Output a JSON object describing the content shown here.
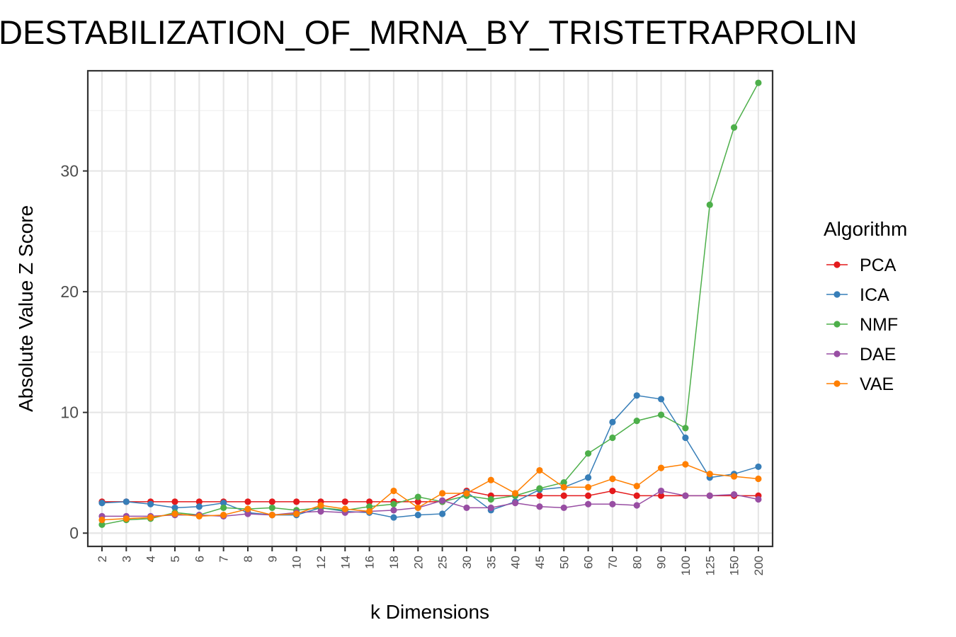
{
  "chart_data": {
    "type": "line",
    "title": "DESTABILIZATION_OF_MRNA_BY_TRISTETRAPROLIN",
    "xlabel": "k Dimensions",
    "ylabel": "Absolute Value Z Score",
    "legend_title": "Algorithm",
    "legend_position": "right",
    "grid": true,
    "ylim": [
      -1.1,
      38.3
    ],
    "yticks": [
      "0",
      "10",
      "20",
      "30"
    ],
    "categories": [
      "2",
      "3",
      "4",
      "5",
      "6",
      "7",
      "8",
      "9",
      "10",
      "12",
      "14",
      "16",
      "18",
      "20",
      "25",
      "30",
      "35",
      "40",
      "45",
      "50",
      "60",
      "70",
      "80",
      "90",
      "100",
      "125",
      "150",
      "200"
    ],
    "series": [
      {
        "name": "PCA",
        "color": "#e41a1c",
        "values": [
          2.6,
          2.6,
          2.6,
          2.6,
          2.6,
          2.6,
          2.6,
          2.6,
          2.6,
          2.6,
          2.6,
          2.6,
          2.6,
          2.6,
          2.6,
          3.5,
          3.1,
          3.1,
          3.1,
          3.1,
          3.1,
          3.5,
          3.1,
          3.1,
          3.1,
          3.1,
          3.1,
          3.1
        ]
      },
      {
        "name": "ICA",
        "color": "#377eb8",
        "values": [
          2.5,
          2.6,
          2.4,
          2.1,
          2.2,
          2.5,
          1.7,
          1.5,
          1.5,
          2.1,
          1.8,
          1.7,
          1.3,
          1.5,
          1.6,
          3.4,
          1.9,
          2.6,
          3.6,
          3.8,
          4.6,
          9.2,
          11.4,
          11.1,
          7.9,
          4.6,
          4.9,
          5.5
        ]
      },
      {
        "name": "NMF",
        "color": "#4daf4a",
        "values": [
          0.7,
          1.1,
          1.2,
          1.7,
          1.5,
          2.1,
          2.0,
          2.1,
          1.9,
          2.1,
          1.9,
          2.2,
          2.4,
          3.0,
          2.6,
          3.1,
          2.8,
          3.1,
          3.7,
          4.2,
          6.6,
          7.9,
          9.3,
          9.8,
          8.7,
          27.2,
          33.6,
          37.3
        ]
      },
      {
        "name": "DAE",
        "color": "#984ea3",
        "values": [
          1.4,
          1.4,
          1.4,
          1.5,
          1.5,
          1.4,
          1.6,
          1.5,
          1.7,
          1.8,
          1.7,
          1.8,
          1.9,
          2.1,
          2.7,
          2.1,
          2.1,
          2.5,
          2.2,
          2.1,
          2.4,
          2.4,
          2.3,
          3.5,
          3.1,
          3.1,
          3.2,
          2.8
        ]
      },
      {
        "name": "VAE",
        "color": "#ff7f00",
        "values": [
          1.1,
          1.2,
          1.3,
          1.6,
          1.4,
          1.5,
          2.0,
          1.5,
          1.6,
          2.3,
          2.0,
          1.8,
          3.5,
          2.1,
          3.3,
          3.3,
          4.4,
          3.3,
          5.2,
          3.8,
          3.8,
          4.5,
          3.9,
          5.4,
          5.7,
          4.9,
          4.7,
          4.5
        ]
      }
    ]
  }
}
